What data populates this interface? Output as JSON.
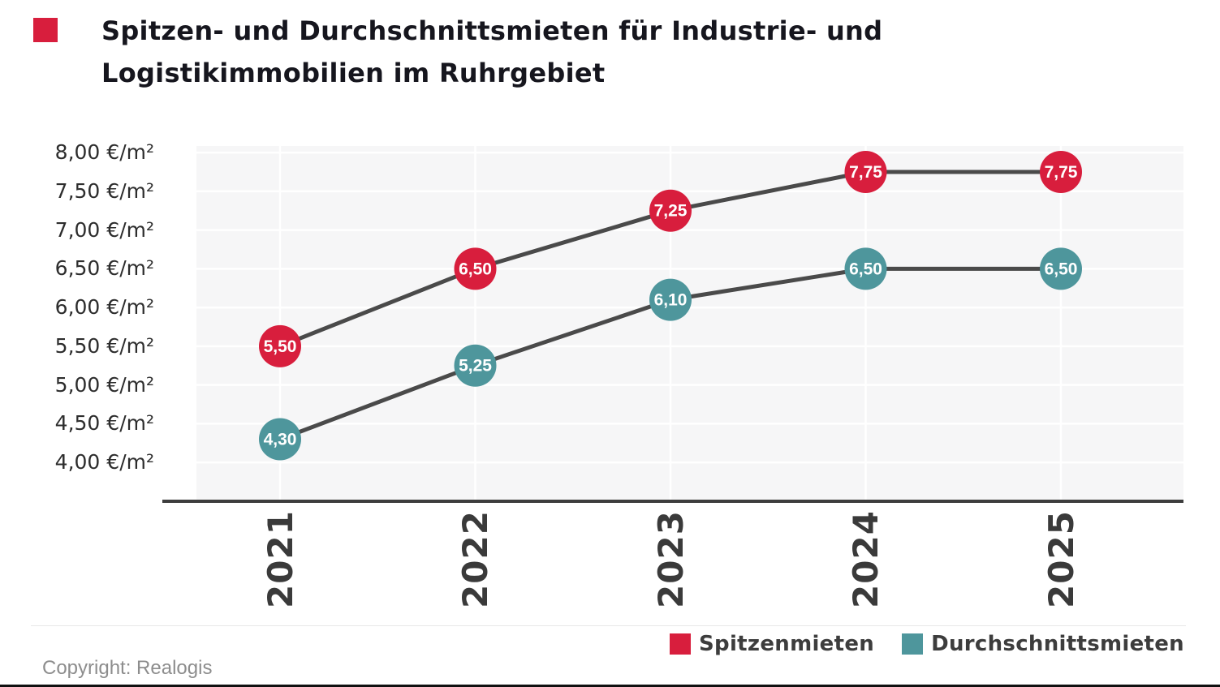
{
  "header": {
    "title_line1": "Spitzen- und Durchschnittsmieten für Industrie- und",
    "title_line2": "Logistikimmobilien im Ruhrgebiet",
    "accent_color": "#d81e3d"
  },
  "chart_data": {
    "type": "line",
    "title": "Spitzen- und Durchschnittsmieten für Industrie- und Logistikimmobilien im Ruhrgebiet",
    "categories": [
      "2021",
      "2022",
      "2023",
      "2024",
      "2025"
    ],
    "series": [
      {
        "name": "Spitzenmieten",
        "color": "#d81e3d",
        "values": [
          5.5,
          6.5,
          7.25,
          7.75,
          7.75
        ],
        "labels": [
          "5,50",
          "6,50",
          "7,25",
          "7,75",
          "7,75"
        ]
      },
      {
        "name": "Durchschnittsmieten",
        "color": "#4e969c",
        "values": [
          4.3,
          5.25,
          6.1,
          6.5,
          6.5
        ],
        "labels": [
          "4,30",
          "5,25",
          "6,10",
          "6,50",
          "6,50"
        ]
      }
    ],
    "y_ticks": [
      {
        "value": 8.0,
        "label": "8,00 €/m²"
      },
      {
        "value": 7.5,
        "label": "7,50 €/m²"
      },
      {
        "value": 7.0,
        "label": "7,00 €/m²"
      },
      {
        "value": 6.5,
        "label": "6,50 €/m²"
      },
      {
        "value": 6.0,
        "label": "6,00 €/m²"
      },
      {
        "value": 5.5,
        "label": "5,50 €/m²"
      },
      {
        "value": 5.0,
        "label": "5,00 €/m²"
      },
      {
        "value": 4.5,
        "label": "4,50 €/m²"
      },
      {
        "value": 4.0,
        "label": "4,00 €/m²"
      }
    ],
    "ylim": [
      4.0,
      8.0
    ],
    "xlabel": "",
    "ylabel": "€/m²",
    "grid": true,
    "line_color": "#4a4a4a",
    "plot_background": "#f6f6f7",
    "legend_position": "bottom-right"
  },
  "legend": {
    "items": [
      {
        "label": "Spitzenmieten",
        "color": "#d81e3d"
      },
      {
        "label": "Durchschnittsmieten",
        "color": "#4e969c"
      }
    ]
  },
  "footer": {
    "copyright": "Copyright: Realogis"
  }
}
